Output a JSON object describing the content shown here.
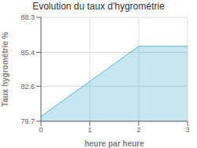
{
  "chart_data": {
    "type": "area",
    "title": "Evolution du taux d'hygrométrie",
    "xlabel": "heure par heure",
    "ylabel": "Taux hygrométrie %",
    "x": [
      0,
      2,
      3
    ],
    "values": [
      80.1,
      85.9,
      85.9
    ],
    "color": "#5bb8d4",
    "xlim": [
      0,
      3
    ],
    "ylim": [
      79.7,
      88.3
    ],
    "xticks": [
      0,
      1,
      2,
      3
    ],
    "yticks": [
      79.7,
      82.6,
      85.4,
      88.3
    ],
    "grid": true
  }
}
